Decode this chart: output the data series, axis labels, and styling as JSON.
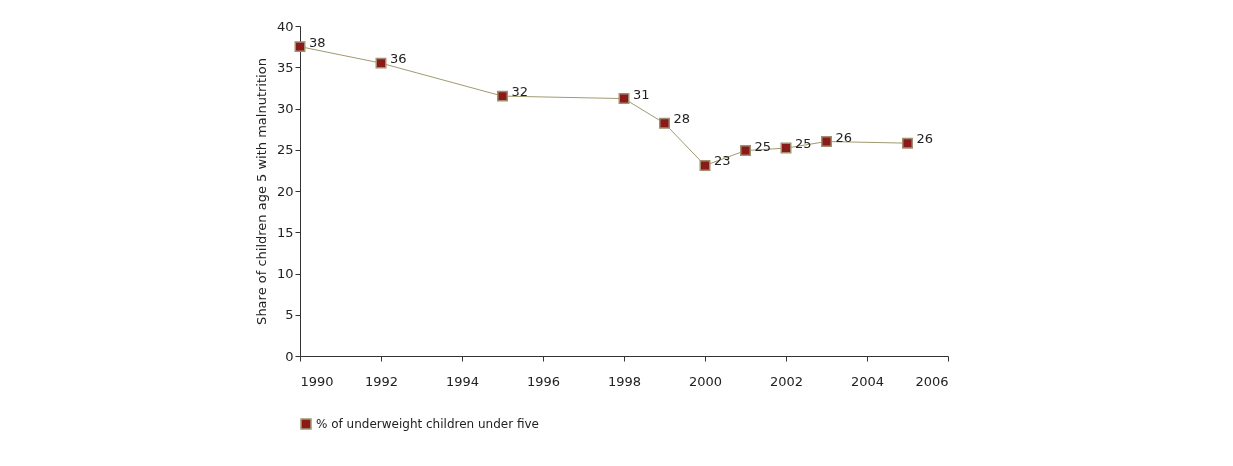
{
  "chart_data": {
    "type": "line",
    "ylabel": "Share of children age 5 with malnutrition",
    "x": [
      1990,
      1992,
      1995,
      1998,
      1999,
      2000,
      2001,
      2002,
      2003,
      2005
    ],
    "series": [
      {
        "name": "% of underweight children under five",
        "color": "#8b1a1a",
        "values": [
          37.5,
          35.5,
          31.5,
          31.2,
          28.2,
          23.1,
          24.9,
          25.2,
          26.0,
          25.8
        ],
        "value_labels": [
          "38",
          "36",
          "32",
          "31",
          "28",
          "23",
          "25",
          "25",
          "26",
          "26"
        ]
      }
    ],
    "xlim": [
      1990,
      2006
    ],
    "xticks": [
      1990,
      1992,
      1994,
      1996,
      1998,
      2000,
      2002,
      2004,
      2006
    ],
    "ylim": [
      0,
      40
    ],
    "yticks": [
      0,
      5,
      10,
      15,
      20,
      25,
      30,
      35,
      40
    ],
    "marker": "square",
    "line_style": "solid",
    "grid": false,
    "legend": "bottom"
  }
}
